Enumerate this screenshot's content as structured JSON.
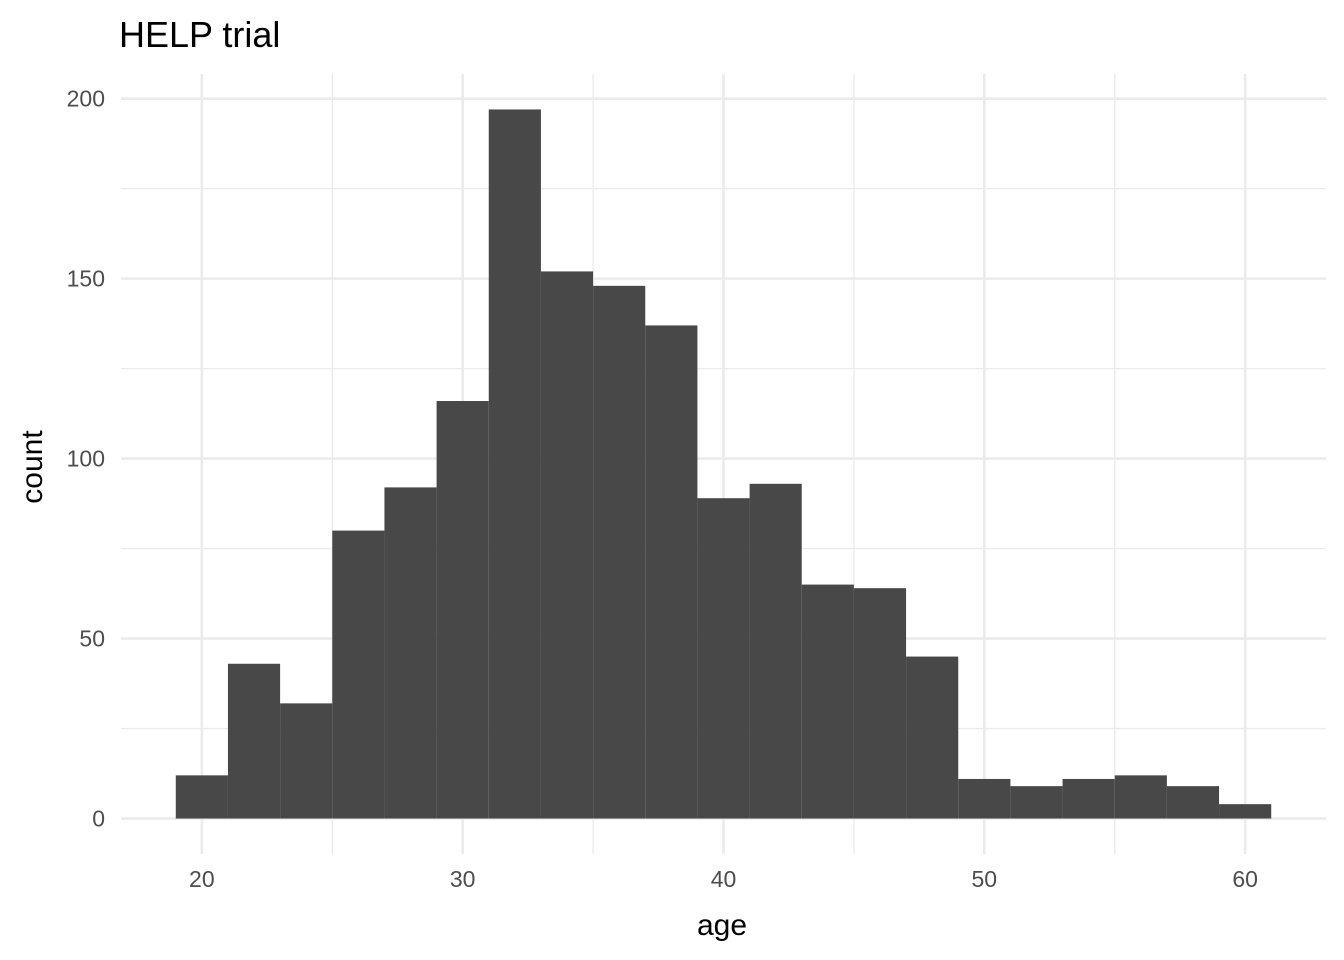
{
  "chart_data": {
    "type": "bar",
    "title": "HELP trial",
    "xlabel": "age",
    "ylabel": "count",
    "bin_width": 2,
    "bins": [
      {
        "x0": 19,
        "x1": 21,
        "count": 12
      },
      {
        "x0": 21,
        "x1": 23,
        "count": 43
      },
      {
        "x0": 23,
        "x1": 25,
        "count": 32
      },
      {
        "x0": 25,
        "x1": 27,
        "count": 80
      },
      {
        "x0": 27,
        "x1": 29,
        "count": 92
      },
      {
        "x0": 29,
        "x1": 31,
        "count": 116
      },
      {
        "x0": 31,
        "x1": 33,
        "count": 197
      },
      {
        "x0": 33,
        "x1": 35,
        "count": 152
      },
      {
        "x0": 35,
        "x1": 37,
        "count": 148
      },
      {
        "x0": 37,
        "x1": 39,
        "count": 137
      },
      {
        "x0": 39,
        "x1": 41,
        "count": 89
      },
      {
        "x0": 41,
        "x1": 43,
        "count": 93
      },
      {
        "x0": 43,
        "x1": 45,
        "count": 65
      },
      {
        "x0": 45,
        "x1": 47,
        "count": 64
      },
      {
        "x0": 47,
        "x1": 49,
        "count": 45
      },
      {
        "x0": 49,
        "x1": 51,
        "count": 11
      },
      {
        "x0": 51,
        "x1": 53,
        "count": 9
      },
      {
        "x0": 53,
        "x1": 55,
        "count": 11
      },
      {
        "x0": 55,
        "x1": 57,
        "count": 12
      },
      {
        "x0": 57,
        "x1": 59,
        "count": 9
      },
      {
        "x0": 59,
        "x1": 61,
        "count": 4
      }
    ],
    "xlim": [
      16.9,
      63.1
    ],
    "ylim": [
      -9.85,
      206.85
    ],
    "x_ticks": [
      20,
      30,
      40,
      50,
      60
    ],
    "x_minor_ticks": [
      25,
      35,
      45,
      55
    ],
    "y_ticks": [
      0,
      50,
      100,
      150,
      200
    ],
    "y_minor_ticks": [
      25,
      75,
      125,
      175
    ],
    "grid": true,
    "bar_color": "#484848",
    "grid_color": "#ebebeb",
    "background": "#ffffff"
  }
}
